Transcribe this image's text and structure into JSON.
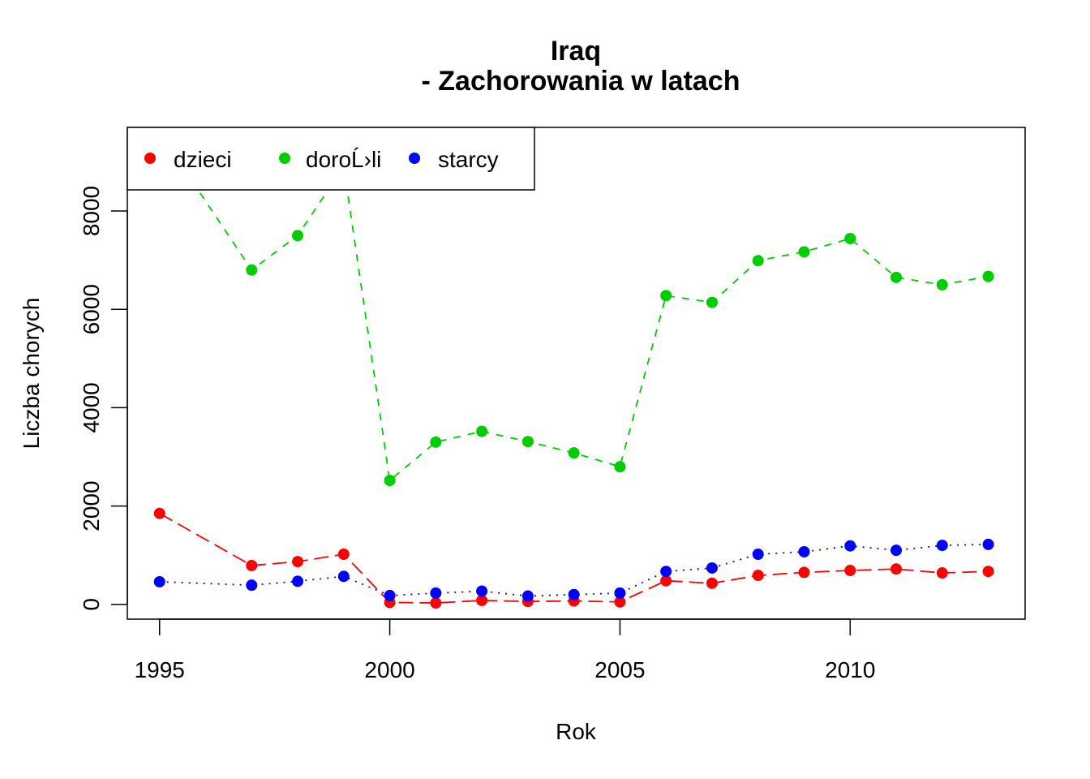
{
  "chart_data": {
    "type": "line",
    "title": "Iraq",
    "subtitle": "- Zachorowania w latach",
    "xlabel": "Rok",
    "ylabel": "Liczba chorych",
    "x": [
      1995,
      1997,
      1998,
      1999,
      2000,
      2001,
      2002,
      2003,
      2004,
      2005,
      2006,
      2007,
      2008,
      2009,
      2010,
      2011,
      2012,
      2013
    ],
    "xlim": [
      1994.3,
      2013.8
    ],
    "ylim": [
      -300,
      9700
    ],
    "xticks": [
      1995,
      2000,
      2005,
      2010
    ],
    "yticks": [
      0,
      2000,
      4000,
      6000,
      8000
    ],
    "legend_position": "top-left",
    "series": [
      {
        "name": "dzieci",
        "color": "#ff0000",
        "line_style": "dashed-long",
        "values": [
          1850,
          790,
          870,
          1020,
          40,
          30,
          80,
          60,
          70,
          50,
          480,
          430,
          590,
          650,
          690,
          720,
          640,
          670
        ]
      },
      {
        "name": "doroĹ›li",
        "color": "#00cd00",
        "line_style": "dashed-short",
        "values": [
          9600,
          6800,
          7500,
          8900,
          2520,
          3300,
          3520,
          3310,
          3080,
          2800,
          6280,
          6140,
          6990,
          7170,
          7440,
          6650,
          6500,
          6670
        ]
      },
      {
        "name": "starcy",
        "color": "#0000ff",
        "line_style": "dotted",
        "values": [
          460,
          390,
          470,
          570,
          180,
          230,
          270,
          170,
          200,
          230,
          670,
          740,
          1020,
          1070,
          1190,
          1100,
          1200,
          1220
        ]
      }
    ]
  }
}
